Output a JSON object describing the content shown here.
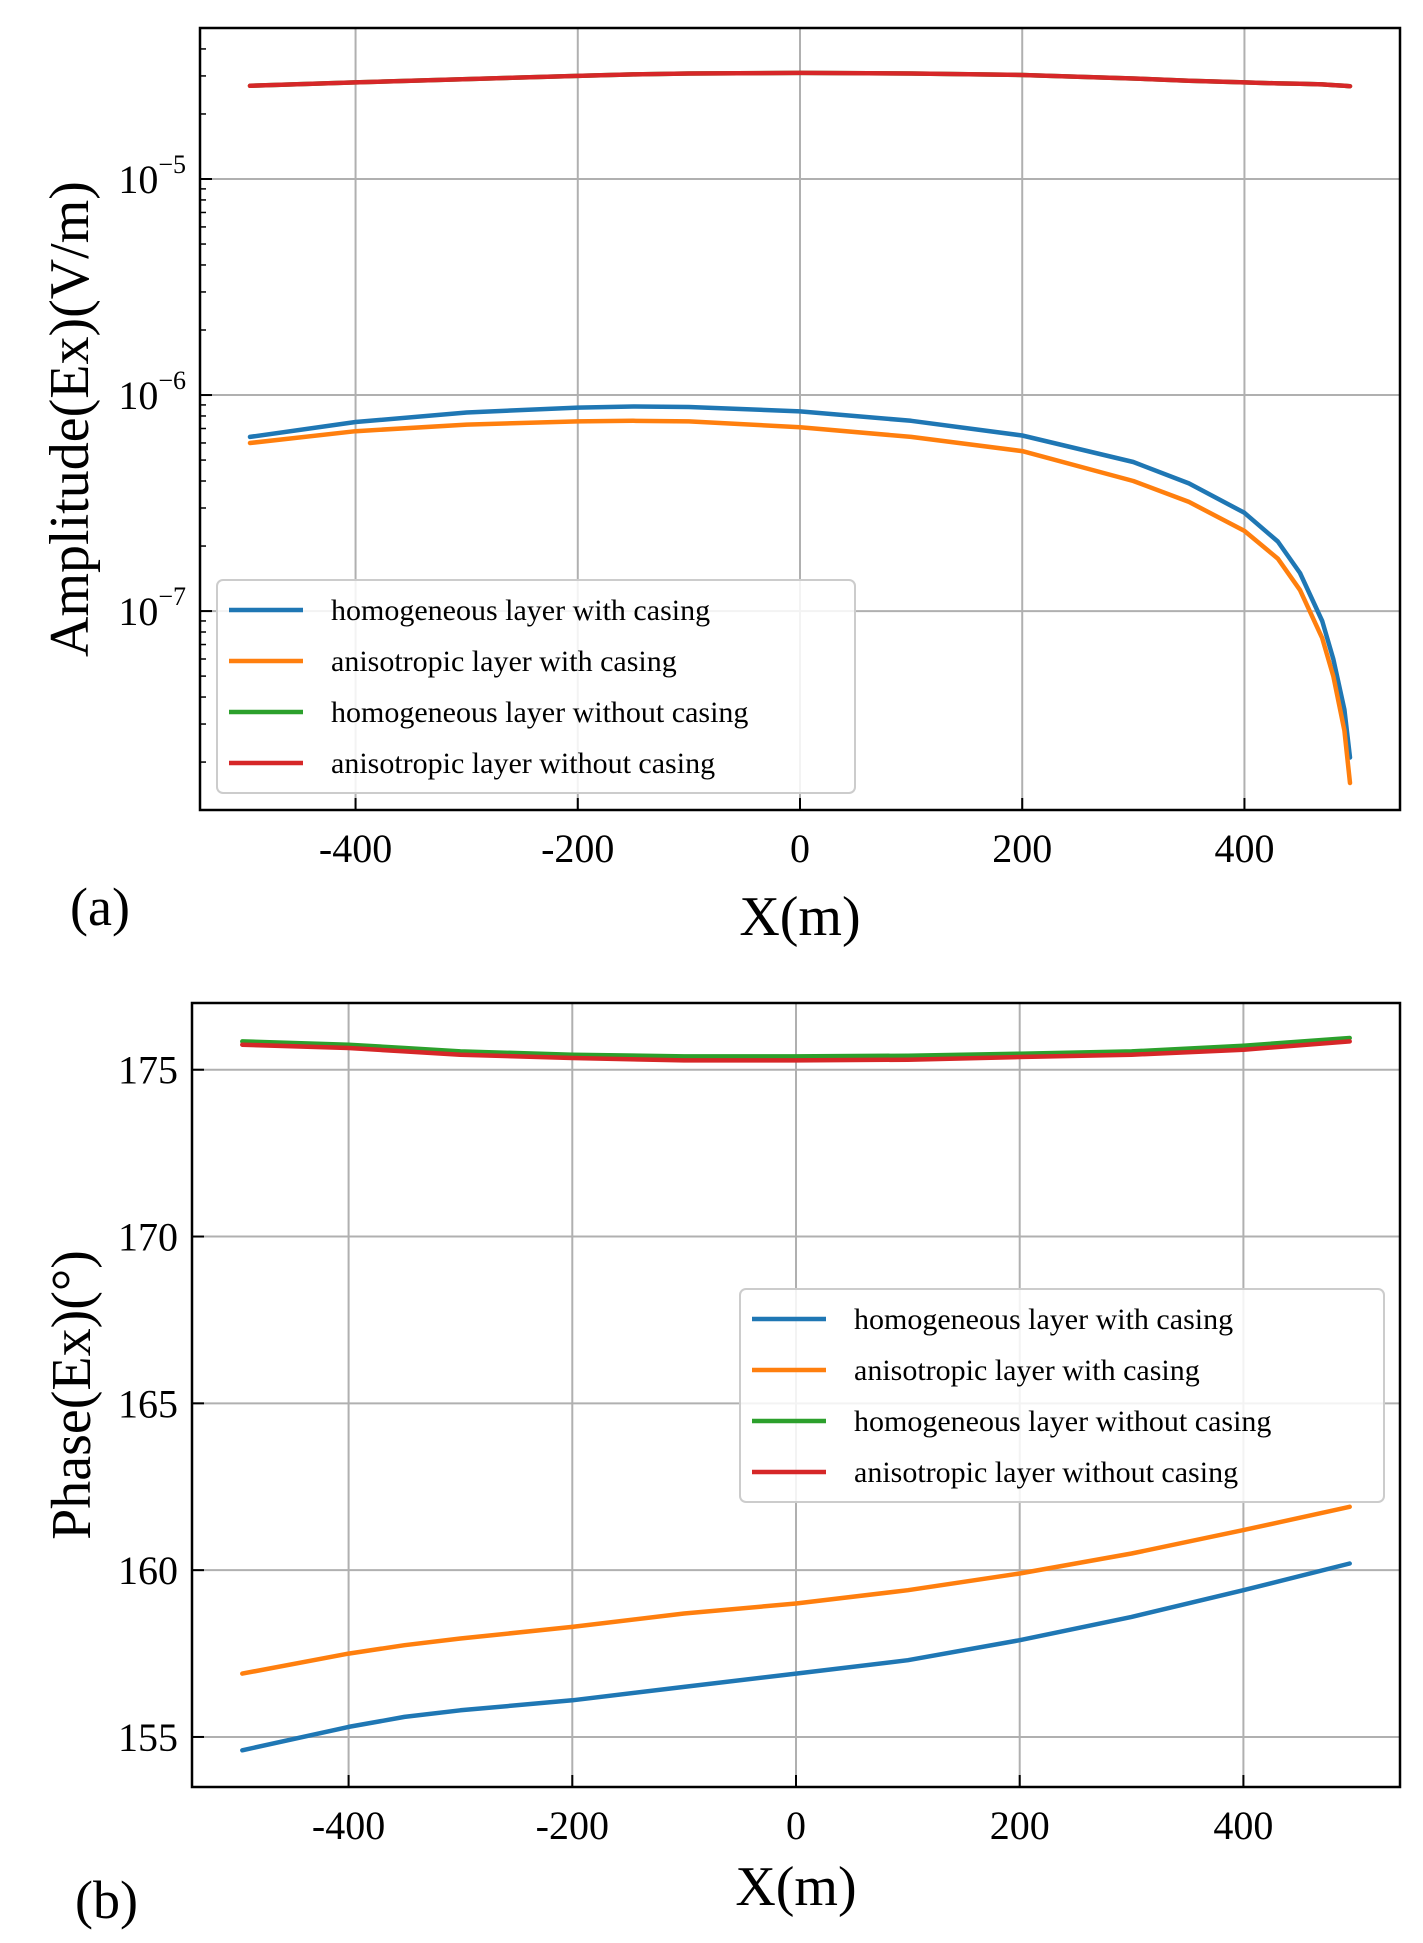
{
  "chart_data": [
    {
      "type": "line",
      "panel_label": "(a)",
      "xlabel": "X(m)",
      "ylabel": "Amplitude(Ex)(V/m)",
      "yscale": "log",
      "xlim": [
        -540,
        540
      ],
      "ylim": [
        1.2e-08,
        5e-05
      ],
      "x_ticks": [
        -400,
        -200,
        0,
        200,
        400
      ],
      "x_tick_labels": [
        "-400",
        "-200",
        "0",
        "200",
        "400"
      ],
      "y_ticks": [
        1e-07,
        1e-06,
        1e-05
      ],
      "y_tick_labels": [
        {
          "base": "10",
          "exp": "−7"
        },
        {
          "base": "10",
          "exp": "−6"
        },
        {
          "base": "10",
          "exp": "−5"
        }
      ],
      "grid": true,
      "legend_position": "lower-left",
      "x": [
        -495,
        -400,
        -300,
        -200,
        -150,
        -100,
        0,
        100,
        200,
        300,
        350,
        400,
        430,
        450,
        470,
        480,
        490,
        495
      ],
      "series": [
        {
          "name": "homogeneous layer with casing",
          "color": "#1f77b4",
          "values": [
            6.4e-07,
            7.5e-07,
            8.3e-07,
            8.75e-07,
            8.85e-07,
            8.8e-07,
            8.4e-07,
            7.6e-07,
            6.5e-07,
            4.9e-07,
            3.9e-07,
            2.85e-07,
            2.1e-07,
            1.5e-07,
            9e-08,
            6e-08,
            3.5e-08,
            2.1e-08
          ]
        },
        {
          "name": "anisotropic layer with casing",
          "color": "#ff7f0e",
          "values": [
            6e-07,
            6.8e-07,
            7.3e-07,
            7.55e-07,
            7.6e-07,
            7.55e-07,
            7.1e-07,
            6.4e-07,
            5.5e-07,
            4e-07,
            3.2e-07,
            2.35e-07,
            1.75e-07,
            1.25e-07,
            7.5e-08,
            5e-08,
            2.8e-08,
            1.6e-08
          ]
        },
        {
          "name": "homogeneous layer without casing",
          "color": "#2ca02c",
          "values": [
            2.7e-05,
            2.8e-05,
            2.9e-05,
            3e-05,
            3.05e-05,
            3.08e-05,
            3.1e-05,
            3.08e-05,
            3.03e-05,
            2.92e-05,
            2.85e-05,
            2.8e-05,
            2.77e-05,
            2.76e-05,
            2.74e-05,
            2.72e-05,
            2.7e-05,
            2.69e-05
          ]
        },
        {
          "name": "anisotropic layer without casing",
          "color": "#d62728",
          "values": [
            2.7e-05,
            2.8e-05,
            2.9e-05,
            3e-05,
            3.05e-05,
            3.08e-05,
            3.1e-05,
            3.08e-05,
            3.03e-05,
            2.92e-05,
            2.85e-05,
            2.8e-05,
            2.77e-05,
            2.76e-05,
            2.74e-05,
            2.72e-05,
            2.7e-05,
            2.69e-05
          ]
        }
      ]
    },
    {
      "type": "line",
      "panel_label": "(b)",
      "xlabel": "X(m)",
      "ylabel": "Phase(Ex)(°)",
      "yscale": "linear",
      "xlim": [
        -540,
        540
      ],
      "ylim": [
        153.5,
        177
      ],
      "x_ticks": [
        -400,
        -200,
        0,
        200,
        400
      ],
      "x_tick_labels": [
        "-400",
        "-200",
        "0",
        "200",
        "400"
      ],
      "y_ticks": [
        155,
        160,
        165,
        170,
        175
      ],
      "y_tick_labels": [
        "155",
        "160",
        "165",
        "170",
        "175"
      ],
      "grid": true,
      "legend_position": "center-right",
      "x": [
        -495,
        -400,
        -350,
        -300,
        -200,
        -100,
        0,
        100,
        200,
        300,
        400,
        495
      ],
      "series": [
        {
          "name": "homogeneous layer with casing",
          "color": "#1f77b4",
          "values": [
            154.6,
            155.3,
            155.6,
            155.8,
            156.1,
            156.5,
            156.9,
            157.3,
            157.9,
            158.6,
            159.4,
            160.2
          ]
        },
        {
          "name": "anisotropic layer with casing",
          "color": "#ff7f0e",
          "values": [
            156.9,
            157.5,
            157.75,
            157.95,
            158.3,
            158.7,
            159.0,
            159.4,
            159.9,
            160.5,
            161.2,
            161.9
          ]
        },
        {
          "name": "homogeneous layer without casing",
          "color": "#2ca02c",
          "values": [
            175.85,
            175.75,
            175.65,
            175.55,
            175.45,
            175.4,
            175.4,
            175.42,
            175.48,
            175.55,
            175.72,
            175.95
          ]
        },
        {
          "name": "anisotropic layer without casing",
          "color": "#d62728",
          "values": [
            175.75,
            175.65,
            175.55,
            175.45,
            175.35,
            175.28,
            175.28,
            175.3,
            175.38,
            175.45,
            175.6,
            175.85
          ]
        }
      ]
    }
  ]
}
